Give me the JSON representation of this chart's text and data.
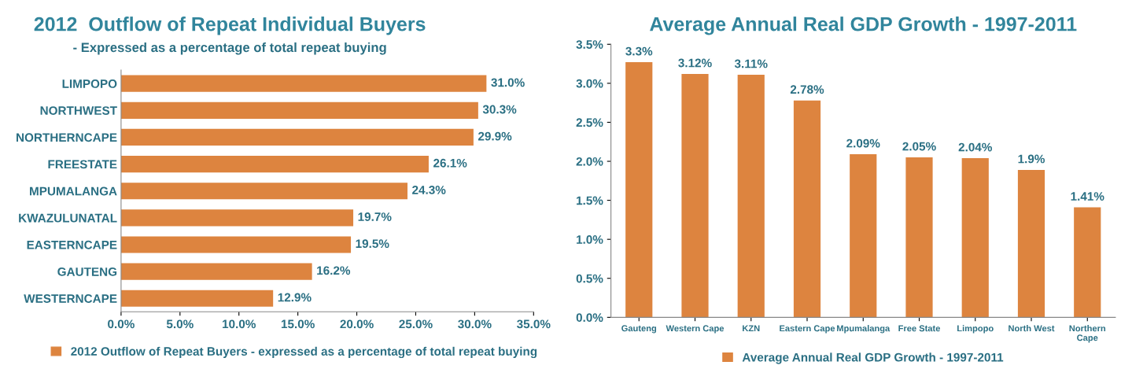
{
  "chart_data": [
    {
      "type": "bar",
      "orientation": "horizontal",
      "title": "2012  Outflow of Repeat Individual Buyers",
      "subtitle": "- Expressed as a percentage of total repeat buying",
      "categories": [
        "LIMPOPO",
        "NORTHWEST",
        "NORTHERNCAPE",
        "FREESTATE",
        "MPUMALANGA",
        "KWAZULUNATAL",
        "EASTERNCAPE",
        "GAUTENG",
        "WESTERNCAPE"
      ],
      "series": [
        {
          "name": "2012 Outflow of Repeat Buyers - expressed as a percentage of total repeat buying",
          "color": "#dd843f",
          "values": [
            31.0,
            30.3,
            29.9,
            26.1,
            24.3,
            19.7,
            19.5,
            16.2,
            12.9
          ],
          "value_labels": [
            "31.0%",
            "30.3%",
            "29.9%",
            "26.1%",
            "24.3%",
            "19.7%",
            "19.5%",
            "16.2%",
            "12.9%"
          ]
        }
      ],
      "xlim": [
        0,
        35
      ],
      "xticks": [
        {
          "value": 0,
          "label": "0.0%"
        },
        {
          "value": 5,
          "label": "5.0%"
        },
        {
          "value": 10,
          "label": "10.0%"
        },
        {
          "value": 15,
          "label": "15.0%"
        },
        {
          "value": 20,
          "label": "20.0%"
        },
        {
          "value": 25,
          "label": "25.0%"
        },
        {
          "value": 30,
          "label": "30.0%"
        },
        {
          "value": 35,
          "label": "35.0%"
        }
      ],
      "grid": false,
      "legend": "bottom"
    },
    {
      "type": "bar",
      "title": "Average Annual Real GDP Growth - 1997-2011",
      "categories": [
        "Gauteng",
        "Western Cape",
        "KZN",
        "Eastern Cape",
        "Mpumalanga",
        "Free State",
        "Limpopo",
        "North West",
        "Northern\nCape"
      ],
      "series": [
        {
          "name": "Average Annual Real GDP Growth - 1997-2011",
          "color": "#dd843f",
          "values": [
            3.27,
            3.12,
            3.11,
            2.78,
            2.09,
            2.05,
            2.04,
            1.89,
            1.41
          ],
          "value_labels": [
            "3.3%",
            "3.12%",
            "3.11%",
            "2.78%",
            "2.09%",
            "2.05%",
            "2.04%",
            "1.9%",
            "1.41%"
          ]
        }
      ],
      "ylim": [
        0,
        3.5
      ],
      "yticks": [
        {
          "value": 0,
          "label": "0.0%"
        },
        {
          "value": 0.5,
          "label": "0.5%"
        },
        {
          "value": 1,
          "label": "1.0%"
        },
        {
          "value": 1.5,
          "label": "1.5%"
        },
        {
          "value": 2,
          "label": "2.0%"
        },
        {
          "value": 2.5,
          "label": "2.5%"
        },
        {
          "value": 3,
          "label": "3.0%"
        },
        {
          "value": 3.5,
          "label": "3.5%"
        }
      ],
      "grid": false,
      "legend": "bottom"
    }
  ]
}
